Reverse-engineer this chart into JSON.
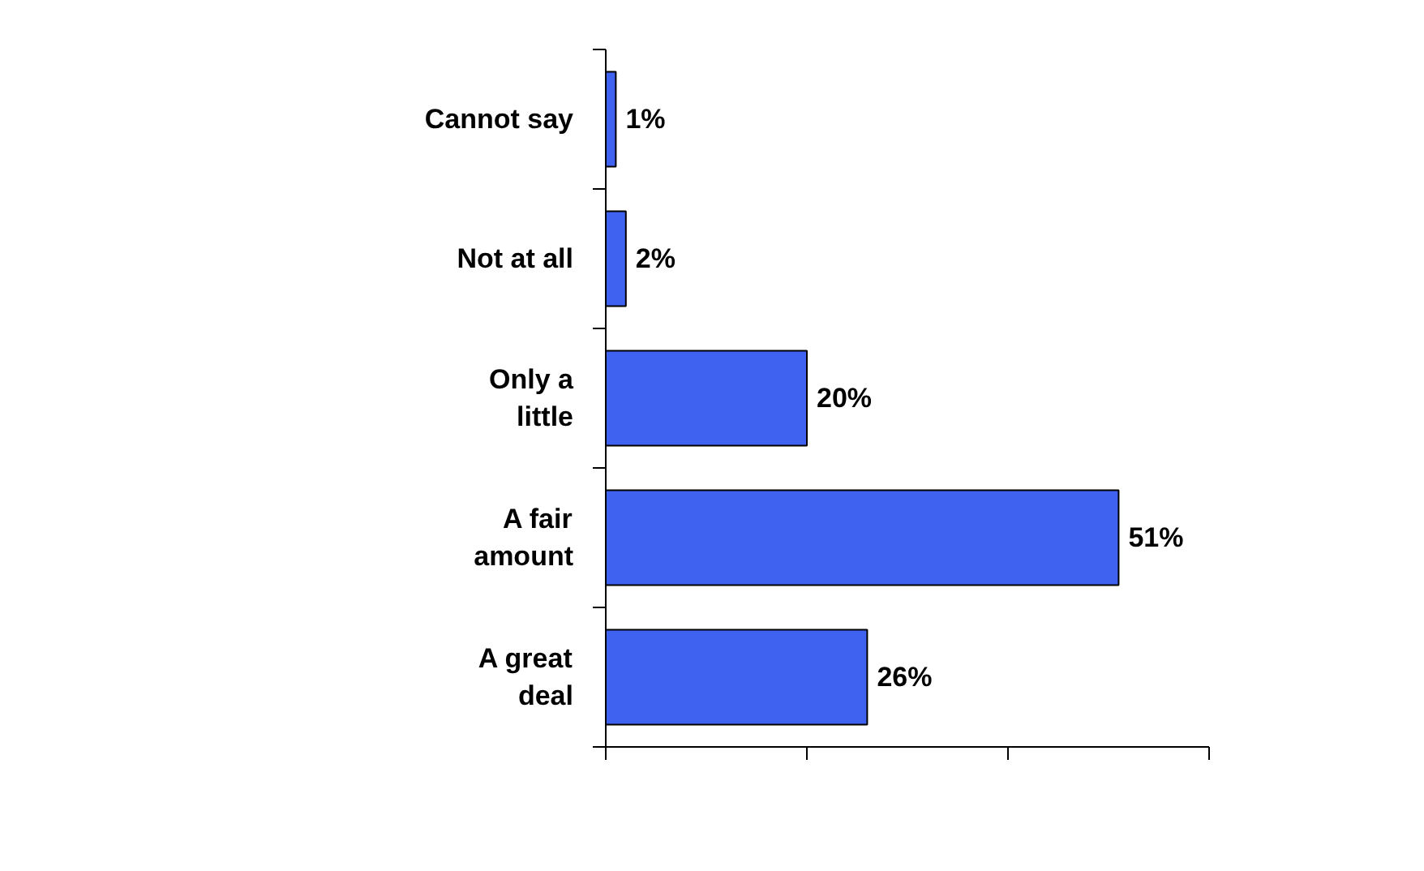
{
  "chart_data": {
    "type": "bar",
    "orientation": "horizontal",
    "categories": [
      "Cannot say",
      "Not at all",
      "Only a little",
      "A fair amount",
      "A great deal"
    ],
    "values": [
      1,
      2,
      20,
      51,
      26
    ],
    "value_labels": [
      "1%",
      "2%",
      "20%",
      "51%",
      "26%"
    ],
    "color": "#3f62f0",
    "xlim": [
      0,
      60
    ],
    "xticks": [
      {
        "value": 0,
        "label": null
      },
      {
        "value": 20,
        "label": null
      },
      {
        "value": 40,
        "label": null
      },
      {
        "value": 60,
        "label": null
      }
    ],
    "tick_labels": "y",
    "grid": false
  }
}
